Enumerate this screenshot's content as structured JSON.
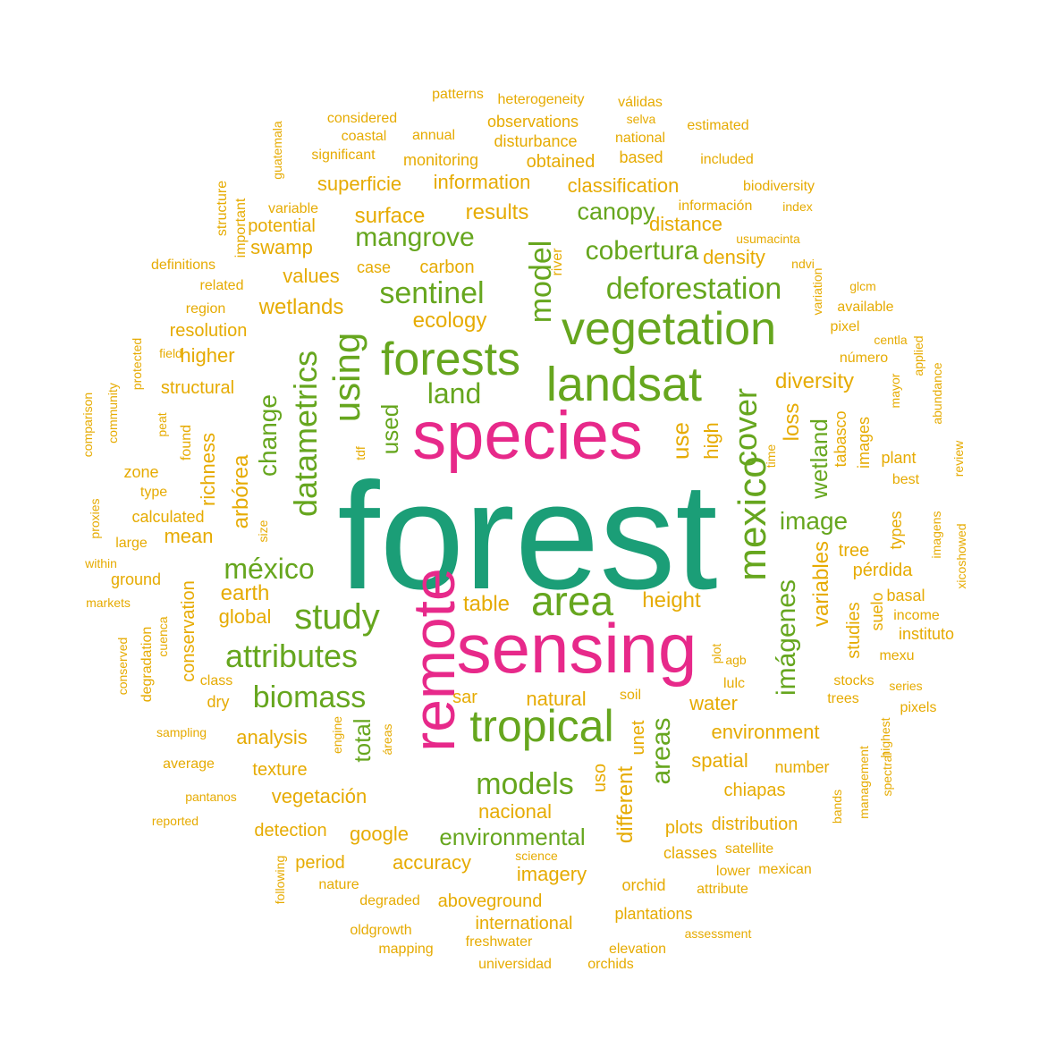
{
  "palette": {
    "teal": "#1b9e77",
    "magenta": "#e7298a",
    "green": "#66a61e",
    "mustard": "#e6ab02"
  },
  "words": [
    {
      "text": "forest",
      "color": "teal",
      "rotated": false
    },
    {
      "text": "species",
      "color": "magenta",
      "rotated": false
    },
    {
      "text": "sensing",
      "color": "magenta",
      "rotated": false
    },
    {
      "text": "remote",
      "color": "magenta",
      "rotated": true
    },
    {
      "text": "landsat",
      "color": "green",
      "rotated": false
    },
    {
      "text": "vegetation",
      "color": "green",
      "rotated": false
    },
    {
      "text": "forests",
      "color": "green",
      "rotated": false
    },
    {
      "text": "tropical",
      "color": "green",
      "rotated": false
    },
    {
      "text": "mexico",
      "color": "green",
      "rotated": true
    },
    {
      "text": "area",
      "color": "green",
      "rotated": false
    },
    {
      "text": "using",
      "color": "green",
      "rotated": true
    },
    {
      "text": "datametrics",
      "color": "green",
      "rotated": true
    },
    {
      "text": "study",
      "color": "green",
      "rotated": false
    },
    {
      "text": "deforestation",
      "color": "green",
      "rotated": false
    },
    {
      "text": "sentinel",
      "color": "green",
      "rotated": false
    },
    {
      "text": "cover",
      "color": "green",
      "rotated": true
    },
    {
      "text": "model",
      "color": "green",
      "rotated": true
    },
    {
      "text": "attributes",
      "color": "green",
      "rotated": false
    },
    {
      "text": "biomass",
      "color": "green",
      "rotated": false
    },
    {
      "text": "models",
      "color": "green",
      "rotated": false
    },
    {
      "text": "méxico",
      "color": "green",
      "rotated": false
    },
    {
      "text": "mangrove",
      "color": "green",
      "rotated": false
    },
    {
      "text": "cobertura",
      "color": "green",
      "rotated": false
    },
    {
      "text": "land",
      "color": "green",
      "rotated": false
    },
    {
      "text": "change",
      "color": "green",
      "rotated": true
    },
    {
      "text": "imágenes",
      "color": "green",
      "rotated": true
    },
    {
      "text": "areas",
      "color": "green",
      "rotated": true
    },
    {
      "text": "image",
      "color": "green",
      "rotated": false
    },
    {
      "text": "canopy",
      "color": "green",
      "rotated": false
    },
    {
      "text": "total",
      "color": "green",
      "rotated": true
    },
    {
      "text": "environmental",
      "color": "green",
      "rotated": false
    },
    {
      "text": "wetland",
      "color": "green",
      "rotated": true
    },
    {
      "text": "used",
      "color": "green",
      "rotated": true
    },
    {
      "text": "ecology",
      "color": "mustard",
      "rotated": false
    },
    {
      "text": "results",
      "color": "mustard",
      "rotated": false
    },
    {
      "text": "surface",
      "color": "mustard",
      "rotated": false
    },
    {
      "text": "wetlands",
      "color": "mustard",
      "rotated": false
    },
    {
      "text": "values",
      "color": "mustard",
      "rotated": false
    },
    {
      "text": "swamp",
      "color": "mustard",
      "rotated": false
    },
    {
      "text": "potential",
      "color": "mustard",
      "rotated": false
    },
    {
      "text": "superficie",
      "color": "mustard",
      "rotated": false
    },
    {
      "text": "information",
      "color": "mustard",
      "rotated": false
    },
    {
      "text": "classification",
      "color": "mustard",
      "rotated": false
    },
    {
      "text": "distance",
      "color": "mustard",
      "rotated": false
    },
    {
      "text": "density",
      "color": "mustard",
      "rotated": false
    },
    {
      "text": "diversity",
      "color": "mustard",
      "rotated": false
    },
    {
      "text": "use",
      "color": "mustard",
      "rotated": true
    },
    {
      "text": "high",
      "color": "mustard",
      "rotated": true
    },
    {
      "text": "loss",
      "color": "mustard",
      "rotated": true
    },
    {
      "text": "variables",
      "color": "mustard",
      "rotated": true
    },
    {
      "text": "tree",
      "color": "mustard",
      "rotated": false
    },
    {
      "text": "pérdida",
      "color": "mustard",
      "rotated": false
    },
    {
      "text": "height",
      "color": "mustard",
      "rotated": false
    },
    {
      "text": "table",
      "color": "mustard",
      "rotated": false
    },
    {
      "text": "earth",
      "color": "mustard",
      "rotated": false
    },
    {
      "text": "global",
      "color": "mustard",
      "rotated": false
    },
    {
      "text": "mean",
      "color": "mustard",
      "rotated": false
    },
    {
      "text": "arbórea",
      "color": "mustard",
      "rotated": true
    },
    {
      "text": "richness",
      "color": "mustard",
      "rotated": true
    },
    {
      "text": "higher",
      "color": "mustard",
      "rotated": false
    },
    {
      "text": "structural",
      "color": "mustard",
      "rotated": false
    },
    {
      "text": "resolution",
      "color": "mustard",
      "rotated": false
    },
    {
      "text": "carbon",
      "color": "mustard",
      "rotated": false
    },
    {
      "text": "case",
      "color": "mustard",
      "rotated": false
    },
    {
      "text": "analysis",
      "color": "mustard",
      "rotated": false
    },
    {
      "text": "texture",
      "color": "mustard",
      "rotated": false
    },
    {
      "text": "vegetación",
      "color": "mustard",
      "rotated": false
    },
    {
      "text": "detection",
      "color": "mustard",
      "rotated": false
    },
    {
      "text": "google",
      "color": "mustard",
      "rotated": false
    },
    {
      "text": "accuracy",
      "color": "mustard",
      "rotated": false
    },
    {
      "text": "imagery",
      "color": "mustard",
      "rotated": false
    },
    {
      "text": "nacional",
      "color": "mustard",
      "rotated": false
    },
    {
      "text": "aboveground",
      "color": "mustard",
      "rotated": false
    },
    {
      "text": "period",
      "color": "mustard",
      "rotated": false
    },
    {
      "text": "natural",
      "color": "mustard",
      "rotated": false
    },
    {
      "text": "sar",
      "color": "mustard",
      "rotated": false
    },
    {
      "text": "water",
      "color": "mustard",
      "rotated": false
    },
    {
      "text": "environment",
      "color": "mustard",
      "rotated": false
    },
    {
      "text": "spatial",
      "color": "mustard",
      "rotated": false
    },
    {
      "text": "chiapas",
      "color": "mustard",
      "rotated": false
    },
    {
      "text": "distribution",
      "color": "mustard",
      "rotated": false
    },
    {
      "text": "plots",
      "color": "mustard",
      "rotated": false
    },
    {
      "text": "classes",
      "color": "mustard",
      "rotated": false
    },
    {
      "text": "number",
      "color": "mustard",
      "rotated": false
    },
    {
      "text": "different",
      "color": "mustard",
      "rotated": true
    },
    {
      "text": "uso",
      "color": "mustard",
      "rotated": true
    },
    {
      "text": "unet",
      "color": "mustard",
      "rotated": true
    },
    {
      "text": "conservation",
      "color": "mustard",
      "rotated": true
    },
    {
      "text": "dry",
      "color": "mustard",
      "rotated": false
    },
    {
      "text": "ground",
      "color": "mustard",
      "rotated": false
    },
    {
      "text": "calculated",
      "color": "mustard",
      "rotated": false
    },
    {
      "text": "monitoring",
      "color": "mustard",
      "rotated": false
    },
    {
      "text": "obtained",
      "color": "mustard",
      "rotated": false
    },
    {
      "text": "disturbance",
      "color": "mustard",
      "rotated": false
    },
    {
      "text": "studies",
      "color": "mustard",
      "rotated": true
    },
    {
      "text": "tabasco",
      "color": "mustard",
      "rotated": true
    },
    {
      "text": "images",
      "color": "mustard",
      "rotated": true
    },
    {
      "text": "international",
      "color": "mustard",
      "rotated": false
    },
    {
      "text": "plantations",
      "color": "mustard",
      "rotated": false
    },
    {
      "text": "orchid",
      "color": "mustard",
      "rotated": false
    },
    {
      "text": "patterns",
      "color": "mustard",
      "rotated": false
    },
    {
      "text": "heterogeneity",
      "color": "mustard",
      "rotated": false
    },
    {
      "text": "válidas",
      "color": "mustard",
      "rotated": false
    },
    {
      "text": "considered",
      "color": "mustard",
      "rotated": false
    },
    {
      "text": "observations",
      "color": "mustard",
      "rotated": false
    },
    {
      "text": "selva",
      "color": "mustard",
      "rotated": false
    },
    {
      "text": "estimated",
      "color": "mustard",
      "rotated": false
    },
    {
      "text": "coastal",
      "color": "mustard",
      "rotated": false
    },
    {
      "text": "annual",
      "color": "mustard",
      "rotated": false
    },
    {
      "text": "national",
      "color": "mustard",
      "rotated": false
    },
    {
      "text": "significant",
      "color": "mustard",
      "rotated": false
    },
    {
      "text": "based",
      "color": "mustard",
      "rotated": false
    },
    {
      "text": "included",
      "color": "mustard",
      "rotated": false
    },
    {
      "text": "guatemala",
      "color": "mustard",
      "rotated": true
    },
    {
      "text": "biodiversity",
      "color": "mustard",
      "rotated": false
    },
    {
      "text": "structure",
      "color": "mustard",
      "rotated": true
    },
    {
      "text": "important",
      "color": "mustard",
      "rotated": true
    },
    {
      "text": "variable",
      "color": "mustard",
      "rotated": false
    },
    {
      "text": "información",
      "color": "mustard",
      "rotated": false
    },
    {
      "text": "index",
      "color": "mustard",
      "rotated": false
    },
    {
      "text": "usumacinta",
      "color": "mustard",
      "rotated": false
    },
    {
      "text": "definitions",
      "color": "mustard",
      "rotated": false
    },
    {
      "text": "river",
      "color": "mustard",
      "rotated": true
    },
    {
      "text": "ndvi",
      "color": "mustard",
      "rotated": false
    },
    {
      "text": "related",
      "color": "mustard",
      "rotated": false
    },
    {
      "text": "glcm",
      "color": "mustard",
      "rotated": false
    },
    {
      "text": "region",
      "color": "mustard",
      "rotated": false
    },
    {
      "text": "variation",
      "color": "mustard",
      "rotated": true
    },
    {
      "text": "available",
      "color": "mustard",
      "rotated": false
    },
    {
      "text": "pixel",
      "color": "mustard",
      "rotated": false
    },
    {
      "text": "centla",
      "color": "mustard",
      "rotated": false
    },
    {
      "text": "field",
      "color": "mustard",
      "rotated": false
    },
    {
      "text": "protected",
      "color": "mustard",
      "rotated": true
    },
    {
      "text": "número",
      "color": "mustard",
      "rotated": false
    },
    {
      "text": "applied",
      "color": "mustard",
      "rotated": true
    },
    {
      "text": "mayor",
      "color": "mustard",
      "rotated": true
    },
    {
      "text": "abundance",
      "color": "mustard",
      "rotated": true
    },
    {
      "text": "community",
      "color": "mustard",
      "rotated": true
    },
    {
      "text": "comparison",
      "color": "mustard",
      "rotated": true
    },
    {
      "text": "peat",
      "color": "mustard",
      "rotated": true
    },
    {
      "text": "found",
      "color": "mustard",
      "rotated": true
    },
    {
      "text": "zone",
      "color": "mustard",
      "rotated": false
    },
    {
      "text": "type",
      "color": "mustard",
      "rotated": false
    },
    {
      "text": "tdf",
      "color": "mustard",
      "rotated": true
    },
    {
      "text": "time",
      "color": "mustard",
      "rotated": true
    },
    {
      "text": "plant",
      "color": "mustard",
      "rotated": false
    },
    {
      "text": "best",
      "color": "mustard",
      "rotated": false
    },
    {
      "text": "review",
      "color": "mustard",
      "rotated": true
    },
    {
      "text": "proxies",
      "color": "mustard",
      "rotated": true
    },
    {
      "text": "large",
      "color": "mustard",
      "rotated": false
    },
    {
      "text": "size",
      "color": "mustard",
      "rotated": true
    },
    {
      "text": "within",
      "color": "mustard",
      "rotated": false
    },
    {
      "text": "types",
      "color": "mustard",
      "rotated": true
    },
    {
      "text": "imagens",
      "color": "mustard",
      "rotated": true
    },
    {
      "text": "xicoshowed",
      "color": "mustard",
      "rotated": true
    },
    {
      "text": "markets",
      "color": "mustard",
      "rotated": false
    },
    {
      "text": "basal",
      "color": "mustard",
      "rotated": false
    },
    {
      "text": "suelo",
      "color": "mustard",
      "rotated": true
    },
    {
      "text": "income",
      "color": "mustard",
      "rotated": false
    },
    {
      "text": "instituto",
      "color": "mustard",
      "rotated": false
    },
    {
      "text": "cuenca",
      "color": "mustard",
      "rotated": true
    },
    {
      "text": "conserved",
      "color": "mustard",
      "rotated": true
    },
    {
      "text": "degradation",
      "color": "mustard",
      "rotated": true
    },
    {
      "text": "class",
      "color": "mustard",
      "rotated": false
    },
    {
      "text": "plot",
      "color": "mustard",
      "rotated": true
    },
    {
      "text": "agb",
      "color": "mustard",
      "rotated": false
    },
    {
      "text": "mexu",
      "color": "mustard",
      "rotated": false
    },
    {
      "text": "lulc",
      "color": "mustard",
      "rotated": false
    },
    {
      "text": "stocks",
      "color": "mustard",
      "rotated": false
    },
    {
      "text": "series",
      "color": "mustard",
      "rotated": false
    },
    {
      "text": "trees",
      "color": "mustard",
      "rotated": false
    },
    {
      "text": "pixels",
      "color": "mustard",
      "rotated": false
    },
    {
      "text": "soil",
      "color": "mustard",
      "rotated": false
    },
    {
      "text": "engine",
      "color": "mustard",
      "rotated": true
    },
    {
      "text": "áreas",
      "color": "mustard",
      "rotated": true
    },
    {
      "text": "sampling",
      "color": "mustard",
      "rotated": false
    },
    {
      "text": "average",
      "color": "mustard",
      "rotated": false
    },
    {
      "text": "highest",
      "color": "mustard",
      "rotated": true
    },
    {
      "text": "management",
      "color": "mustard",
      "rotated": true
    },
    {
      "text": "pantanos",
      "color": "mustard",
      "rotated": false
    },
    {
      "text": "reported",
      "color": "mustard",
      "rotated": false
    },
    {
      "text": "bands",
      "color": "mustard",
      "rotated": true
    },
    {
      "text": "spectral",
      "color": "mustard",
      "rotated": true
    },
    {
      "text": "following",
      "color": "mustard",
      "rotated": true
    },
    {
      "text": "satellite",
      "color": "mustard",
      "rotated": false
    },
    {
      "text": "science",
      "color": "mustard",
      "rotated": false
    },
    {
      "text": "lower",
      "color": "mustard",
      "rotated": false
    },
    {
      "text": "mexican",
      "color": "mustard",
      "rotated": false
    },
    {
      "text": "nature",
      "color": "mustard",
      "rotated": false
    },
    {
      "text": "attribute",
      "color": "mustard",
      "rotated": false
    },
    {
      "text": "degraded",
      "color": "mustard",
      "rotated": false
    },
    {
      "text": "assessment",
      "color": "mustard",
      "rotated": false
    },
    {
      "text": "oldgrowth",
      "color": "mustard",
      "rotated": false
    },
    {
      "text": "freshwater",
      "color": "mustard",
      "rotated": false
    },
    {
      "text": "mapping",
      "color": "mustard",
      "rotated": false
    },
    {
      "text": "elevation",
      "color": "mustard",
      "rotated": false
    },
    {
      "text": "universidad",
      "color": "mustard",
      "rotated": false
    },
    {
      "text": "orchids",
      "color": "mustard",
      "rotated": false
    }
  ]
}
